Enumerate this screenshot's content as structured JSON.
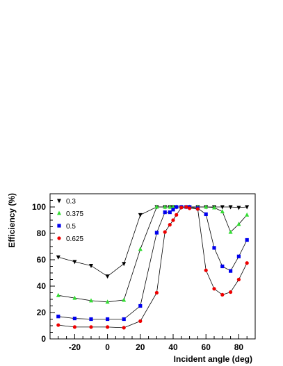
{
  "chart_data": {
    "type": "scatter",
    "xlabel": "Incident angle (deg)",
    "ylabel": "Efficiency (%)",
    "xlim": [
      -35,
      90
    ],
    "ylim": [
      0,
      110
    ],
    "x_ticks": [
      -20,
      0,
      20,
      40,
      60,
      80
    ],
    "y_ticks": [
      0,
      20,
      40,
      60,
      80,
      100
    ],
    "grid": false,
    "legend_position": "top-left",
    "series": [
      {
        "name": "0.3",
        "marker": "triangle-down",
        "color": "#000000",
        "points": [
          [
            -30,
            62
          ],
          [
            -20,
            58.5
          ],
          [
            -10,
            55.5
          ],
          [
            0,
            47.5
          ],
          [
            10,
            57
          ],
          [
            20,
            94
          ],
          [
            30,
            100
          ],
          [
            35,
            100
          ],
          [
            38,
            100
          ],
          [
            40,
            100
          ],
          [
            42,
            100
          ],
          [
            45,
            100
          ],
          [
            48,
            100
          ],
          [
            50,
            100
          ],
          [
            55,
            100
          ],
          [
            60,
            100
          ],
          [
            65,
            100
          ],
          [
            70,
            100
          ],
          [
            75,
            100
          ],
          [
            80,
            99.5
          ],
          [
            85,
            100
          ]
        ]
      },
      {
        "name": "0.375",
        "marker": "triangle-up",
        "color": "#33dd33",
        "points": [
          [
            -30,
            33
          ],
          [
            -20,
            31
          ],
          [
            -10,
            29
          ],
          [
            0,
            28
          ],
          [
            10,
            29.5
          ],
          [
            20,
            68
          ],
          [
            30,
            100
          ],
          [
            35,
            100
          ],
          [
            38,
            100
          ],
          [
            40,
            100
          ],
          [
            42,
            100
          ],
          [
            45,
            100
          ],
          [
            48,
            100
          ],
          [
            50,
            100
          ],
          [
            55,
            100
          ],
          [
            60,
            100
          ],
          [
            65,
            99.5
          ],
          [
            70,
            96.5
          ],
          [
            75,
            81
          ],
          [
            80,
            87
          ],
          [
            85,
            94
          ]
        ]
      },
      {
        "name": "0.5",
        "marker": "square",
        "color": "#0000ee",
        "points": [
          [
            -30,
            17
          ],
          [
            -20,
            15.5
          ],
          [
            -10,
            15
          ],
          [
            0,
            15
          ],
          [
            10,
            15
          ],
          [
            20,
            25
          ],
          [
            30,
            80.5
          ],
          [
            35,
            96
          ],
          [
            38,
            96
          ],
          [
            40,
            98
          ],
          [
            42,
            100
          ],
          [
            45,
            100
          ],
          [
            48,
            100
          ],
          [
            50,
            100
          ],
          [
            55,
            99
          ],
          [
            60,
            94.5
          ],
          [
            65,
            69
          ],
          [
            70,
            55
          ],
          [
            75,
            51.5
          ],
          [
            80,
            62.5
          ],
          [
            85,
            75
          ]
        ]
      },
      {
        "name": "0.625",
        "marker": "circle",
        "color": "#ee0000",
        "points": [
          [
            -30,
            10.5
          ],
          [
            -20,
            9
          ],
          [
            -10,
            9
          ],
          [
            0,
            9
          ],
          [
            10,
            8.5
          ],
          [
            20,
            13.5
          ],
          [
            30,
            35
          ],
          [
            35,
            81
          ],
          [
            38,
            86.5
          ],
          [
            40,
            90
          ],
          [
            42,
            94
          ],
          [
            45,
            99.5
          ],
          [
            48,
            100
          ],
          [
            50,
            99
          ],
          [
            55,
            98.5
          ],
          [
            60,
            52
          ],
          [
            65,
            38
          ],
          [
            70,
            33.5
          ],
          [
            75,
            35.5
          ],
          [
            80,
            45
          ],
          [
            85,
            57.5
          ]
        ]
      }
    ]
  }
}
